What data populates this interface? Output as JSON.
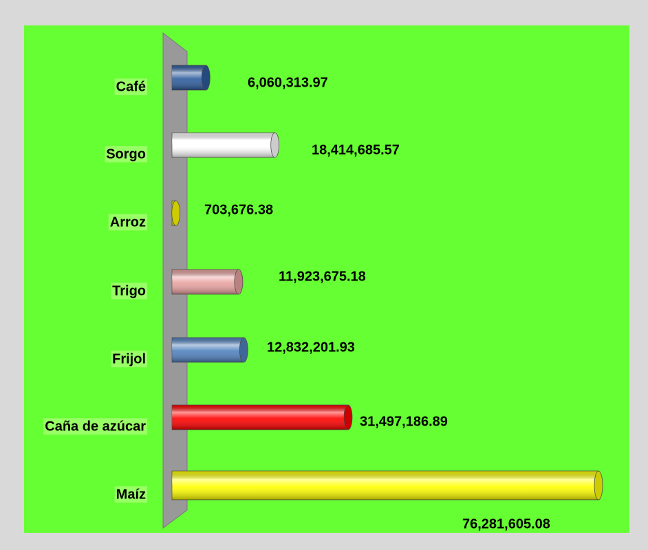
{
  "chart_data": {
    "type": "bar",
    "categories": [
      "Café",
      "Sorgo",
      "Arroz",
      "Trigo",
      "Frijol",
      "Caña de azúcar",
      "Maíz"
    ],
    "values": [
      6060313.97,
      18414685.57,
      703676.38,
      11923675.18,
      12832201.93,
      31497186.89,
      76281605.08
    ],
    "value_labels": [
      "6,060,313.97",
      "18,414,685.57",
      "703,676.38",
      "11,923,675.18",
      "12,832,201.93",
      "31,497,186.89",
      "76,281,605.08"
    ],
    "colors": [
      "#2f5d9e",
      "#ffffff",
      "#ffff00",
      "#e8a2a0",
      "#4f81bd",
      "#ff0000",
      "#ffff00"
    ]
  }
}
